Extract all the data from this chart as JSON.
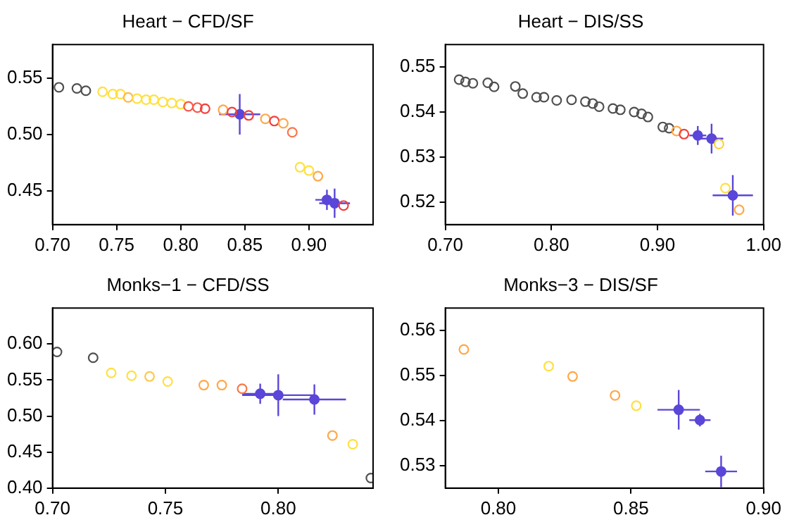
{
  "chart_data": [
    {
      "type": "scatter",
      "title": "Heart − CFD/SF",
      "xlim": [
        0.7,
        0.95
      ],
      "ylim": [
        0.42,
        0.58
      ],
      "xticks": [
        {
          "value": 0.7,
          "label": "0.70"
        },
        {
          "value": 0.75,
          "label": "0.75"
        },
        {
          "value": 0.8,
          "label": "0.80"
        },
        {
          "value": 0.85,
          "label": "0.85"
        },
        {
          "value": 0.9,
          "label": "0.90"
        }
      ],
      "yticks": [
        {
          "value": 0.45,
          "label": "0.45"
        },
        {
          "value": 0.5,
          "label": "0.50"
        },
        {
          "value": 0.55,
          "label": "0.55"
        }
      ],
      "grid": false,
      "legend": false,
      "marker": "circle",
      "series": [
        {
          "x": [
            0.705,
            0.719,
            0.726,
            0.739,
            0.747,
            0.753,
            0.759,
            0.766,
            0.773,
            0.779,
            0.786,
            0.793,
            0.8,
            0.806,
            0.813,
            0.819,
            0.833,
            0.84,
            0.853,
            0.866,
            0.873,
            0.88,
            0.887,
            0.893,
            0.9,
            0.907,
            0.927
          ],
          "values": [
            0.542,
            0.541,
            0.539,
            0.538,
            0.536,
            0.536,
            0.533,
            0.532,
            0.531,
            0.531,
            0.529,
            0.528,
            0.527,
            0.525,
            0.524,
            0.523,
            0.522,
            0.52,
            0.517,
            0.514,
            0.512,
            0.51,
            0.502,
            0.471,
            0.468,
            0.463,
            0.437
          ],
          "colors": [
            "#505050",
            "#505050",
            "#505050",
            "#ffe040",
            "#ffe040",
            "#ffe040",
            "#ffb848",
            "#ffe040",
            "#ffe040",
            "#ffe040",
            "#ffe040",
            "#ffe040",
            "#ffe040",
            "#f85848",
            "#f85848",
            "#f04040",
            "#ffa848",
            "#f04040",
            "#f04040",
            "#ffa848",
            "#f04040",
            "#ffa848",
            "#f87848",
            "#ffe040",
            "#ffe040",
            "#ffa848",
            "#f04040"
          ]
        },
        {
          "color": "#5a46d8",
          "x": [
            0.846,
            0.914,
            0.92
          ],
          "values": [
            0.518,
            0.442,
            0.439
          ],
          "errors": [
            0.018,
            0.009,
            0.013
          ],
          "xerrors": [
            0.016,
            0.009,
            0.012
          ]
        }
      ]
    },
    {
      "type": "scatter",
      "title": "Heart − DIS/SS",
      "xlim": [
        0.7,
        1.0
      ],
      "ylim": [
        0.515,
        0.555
      ],
      "xticks": [
        {
          "value": 0.7,
          "label": "0.70"
        },
        {
          "value": 0.8,
          "label": "0.80"
        },
        {
          "value": 0.9,
          "label": "0.90"
        },
        {
          "value": 1.0,
          "label": "1.00"
        }
      ],
      "yticks": [
        {
          "value": 0.52,
          "label": "0.52"
        },
        {
          "value": 0.53,
          "label": "0.53"
        },
        {
          "value": 0.54,
          "label": "0.54"
        },
        {
          "value": 0.55,
          "label": "0.55"
        }
      ],
      "grid": false,
      "legend": false,
      "marker": "circle",
      "series": [
        {
          "x": [
            0.713,
            0.719,
            0.726,
            0.74,
            0.746,
            0.766,
            0.773,
            0.786,
            0.793,
            0.805,
            0.819,
            0.832,
            0.839,
            0.845,
            0.858,
            0.865,
            0.878,
            0.885,
            0.891,
            0.905,
            0.911,
            0.918,
            0.925,
            0.958,
            0.964,
            0.977
          ],
          "values": [
            0.5472,
            0.5467,
            0.5464,
            0.5465,
            0.5456,
            0.5457,
            0.5441,
            0.5433,
            0.5433,
            0.5426,
            0.5427,
            0.5423,
            0.5419,
            0.5412,
            0.5408,
            0.5405,
            0.54,
            0.5396,
            0.5389,
            0.5367,
            0.5364,
            0.5358,
            0.5351,
            0.5329,
            0.5231,
            0.5183
          ],
          "colors": [
            "#505050",
            "#505050",
            "#505050",
            "#505050",
            "#505050",
            "#505050",
            "#505050",
            "#505050",
            "#505050",
            "#505050",
            "#505050",
            "#505050",
            "#505050",
            "#505050",
            "#505050",
            "#505050",
            "#505050",
            "#505050",
            "#505050",
            "#505050",
            "#505050",
            "#ffa848",
            "#f04040",
            "#ffd040",
            "#ffe040",
            "#ffa848"
          ]
        },
        {
          "color": "#5a46d8",
          "x": [
            0.938,
            0.951,
            0.971
          ],
          "values": [
            0.5348,
            0.5341,
            0.5215
          ],
          "errors": [
            0.0021,
            0.0033,
            0.0045
          ],
          "xerrors": [
            0.008,
            0.011,
            0.019
          ]
        }
      ]
    },
    {
      "type": "scatter",
      "title": "Monks−1 − CFD/SS",
      "xlim": [
        0.7,
        0.842
      ],
      "ylim": [
        0.4,
        0.65
      ],
      "xticks": [
        {
          "value": 0.7,
          "label": "0.70"
        },
        {
          "value": 0.75,
          "label": "0.75"
        },
        {
          "value": 0.8,
          "label": "0.80"
        }
      ],
      "yticks": [
        {
          "value": 0.4,
          "label": "0.40"
        },
        {
          "value": 0.45,
          "label": "0.45"
        },
        {
          "value": 0.5,
          "label": "0.50"
        },
        {
          "value": 0.55,
          "label": "0.55"
        },
        {
          "value": 0.6,
          "label": "0.60"
        }
      ],
      "grid": false,
      "legend": false,
      "marker": "circle",
      "series": [
        {
          "x": [
            0.702,
            0.718,
            0.726,
            0.735,
            0.743,
            0.751,
            0.767,
            0.775,
            0.784,
            0.824,
            0.833,
            0.841
          ],
          "values": [
            0.589,
            0.581,
            0.56,
            0.556,
            0.555,
            0.548,
            0.543,
            0.543,
            0.538,
            0.473,
            0.461,
            0.414
          ],
          "colors": [
            "#505050",
            "#505050",
            "#ffe040",
            "#ffe040",
            "#ffc848",
            "#ffe040",
            "#ffa848",
            "#ffa848",
            "#f87848",
            "#ffa848",
            "#ffe040",
            "#505050"
          ]
        },
        {
          "color": "#5a46d8",
          "x": [
            0.792,
            0.8,
            0.816
          ],
          "values": [
            0.531,
            0.529,
            0.523
          ],
          "errors": [
            0.014,
            0.029,
            0.021
          ],
          "xerrors": [
            0.008,
            0.016,
            0.014
          ]
        }
      ]
    },
    {
      "type": "scatter",
      "title": "Monks−3 − DIS/SF",
      "xlim": [
        0.78,
        0.9
      ],
      "ylim": [
        0.525,
        0.565
      ],
      "xticks": [
        {
          "value": 0.8,
          "label": "0.80"
        },
        {
          "value": 0.85,
          "label": "0.85"
        },
        {
          "value": 0.9,
          "label": "0.90"
        }
      ],
      "yticks": [
        {
          "value": 0.53,
          "label": "0.53"
        },
        {
          "value": 0.54,
          "label": "0.54"
        },
        {
          "value": 0.55,
          "label": "0.55"
        },
        {
          "value": 0.56,
          "label": "0.56"
        }
      ],
      "grid": false,
      "legend": false,
      "marker": "circle",
      "series": [
        {
          "x": [
            0.787,
            0.819,
            0.828,
            0.844,
            0.852
          ],
          "values": [
            0.5558,
            0.5521,
            0.5498,
            0.5456,
            0.5433
          ],
          "colors": [
            "#ffa848",
            "#ffe040",
            "#ffa848",
            "#ffa848",
            "#ffe040"
          ]
        },
        {
          "color": "#5a46d8",
          "x": [
            0.868,
            0.876,
            0.884
          ],
          "values": [
            0.5424,
            0.5401,
            0.5287
          ],
          "errors": [
            0.0044,
            0.0014,
            0.0035
          ],
          "xerrors": [
            0.008,
            0.004,
            0.006
          ]
        }
      ]
    }
  ]
}
